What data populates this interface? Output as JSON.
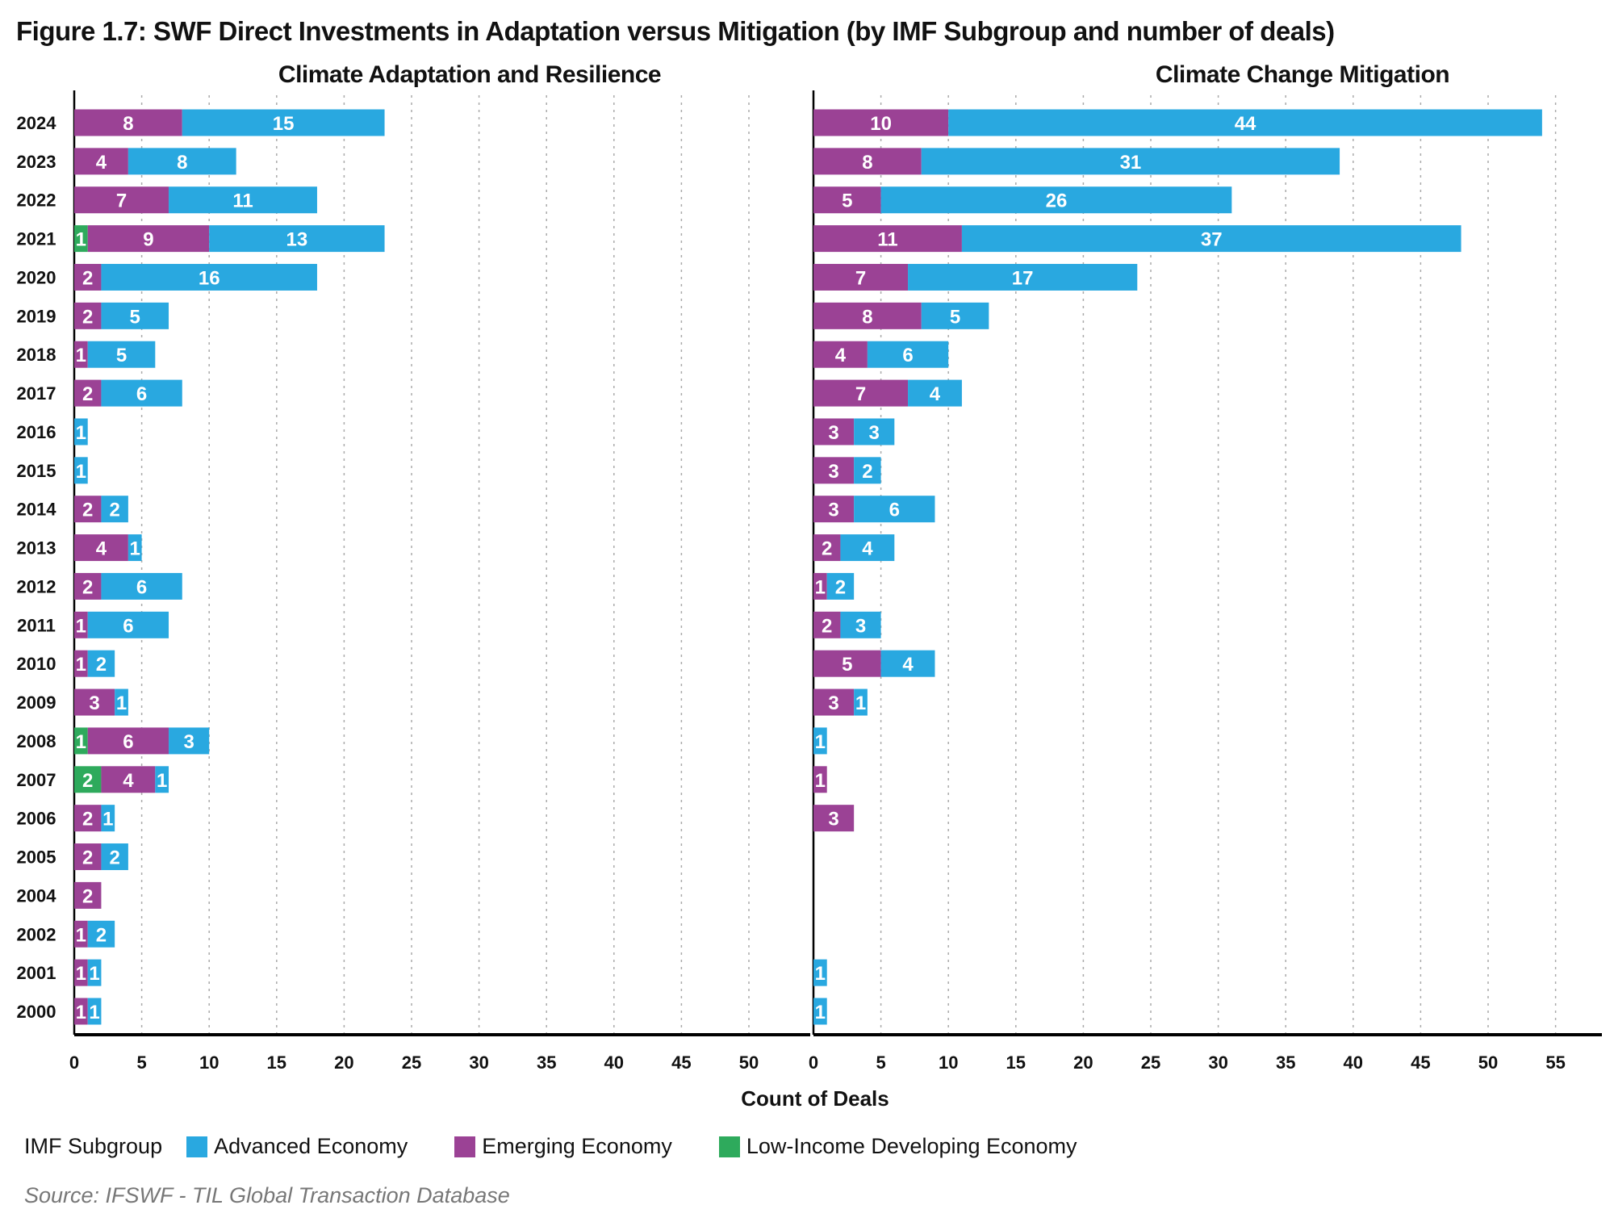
{
  "title": "Figure 1.7: SWF Direct Investments in Adaptation versus Mitigation (by IMF Subgroup and number of deals)",
  "xlabel": "Count of Deals",
  "legend": {
    "title": "IMF Subgroup",
    "items": [
      {
        "name": "Advanced Economy",
        "color": "#29a8e0"
      },
      {
        "name": "Emerging Economy",
        "color": "#9b4295"
      },
      {
        "name": "Low-Income Developing Economy",
        "color": "#2eaa5c"
      }
    ]
  },
  "source": "Source: IFSWF - TIL Global Transaction Database",
  "colors": {
    "advanced": "#29a8e0",
    "emerging": "#9b4295",
    "lowincome": "#2eaa5c"
  },
  "chart_data": [
    {
      "type": "bar",
      "orientation": "horizontal",
      "stacked": true,
      "title": "Climate Adaptation and Resilience",
      "xlabel": "Count of Deals",
      "ylabel": "",
      "xlim": [
        0,
        55
      ],
      "xticks": [
        0,
        5,
        10,
        15,
        20,
        25,
        30,
        35,
        40,
        45,
        50
      ],
      "grid": "vertical-dotted",
      "legend": "bottom-left",
      "categories": [
        "2024",
        "2023",
        "2022",
        "2021",
        "2020",
        "2019",
        "2018",
        "2017",
        "2016",
        "2015",
        "2014",
        "2013",
        "2012",
        "2011",
        "2010",
        "2009",
        "2008",
        "2007",
        "2006",
        "2005",
        "2004",
        "2002",
        "2001",
        "2000"
      ],
      "series": [
        {
          "name": "Low-Income Developing Economy",
          "key": "lowincome",
          "values": [
            0,
            0,
            0,
            1,
            0,
            0,
            0,
            0,
            0,
            0,
            0,
            0,
            0,
            0,
            0,
            0,
            1,
            2,
            0,
            0,
            0,
            0,
            0,
            0
          ]
        },
        {
          "name": "Emerging Economy",
          "key": "emerging",
          "values": [
            8,
            4,
            7,
            9,
            2,
            2,
            1,
            2,
            0,
            0,
            2,
            4,
            2,
            1,
            1,
            3,
            6,
            4,
            2,
            2,
            2,
            1,
            1,
            1
          ]
        },
        {
          "name": "Advanced Economy",
          "key": "advanced",
          "values": [
            15,
            8,
            11,
            13,
            16,
            5,
            5,
            6,
            1,
            1,
            2,
            1,
            6,
            6,
            2,
            1,
            3,
            1,
            1,
            2,
            0,
            2,
            1,
            1
          ]
        }
      ]
    },
    {
      "type": "bar",
      "orientation": "horizontal",
      "stacked": true,
      "title": "Climate Change Mitigation",
      "xlabel": "Count of Deals",
      "ylabel": "",
      "xlim": [
        0,
        58
      ],
      "xticks": [
        0,
        5,
        10,
        15,
        20,
        25,
        30,
        35,
        40,
        45,
        50,
        55
      ],
      "grid": "vertical-dotted",
      "legend": "bottom-left",
      "categories": [
        "2024",
        "2023",
        "2022",
        "2021",
        "2020",
        "2019",
        "2018",
        "2017",
        "2016",
        "2015",
        "2014",
        "2013",
        "2012",
        "2011",
        "2010",
        "2009",
        "2008",
        "2007",
        "2006",
        "2005",
        "2004",
        "2002",
        "2001",
        "2000"
      ],
      "series": [
        {
          "name": "Low-Income Developing Economy",
          "key": "lowincome",
          "values": [
            0,
            0,
            0,
            0,
            0,
            0,
            0,
            0,
            0,
            0,
            0,
            0,
            0,
            0,
            0,
            0,
            0,
            0,
            0,
            0,
            0,
            0,
            0,
            0
          ]
        },
        {
          "name": "Emerging Economy",
          "key": "emerging",
          "values": [
            10,
            8,
            5,
            11,
            7,
            8,
            4,
            7,
            3,
            3,
            3,
            2,
            1,
            2,
            5,
            3,
            0,
            1,
            3,
            0,
            0,
            0,
            0,
            0
          ]
        },
        {
          "name": "Advanced Economy",
          "key": "advanced",
          "values": [
            44,
            31,
            26,
            37,
            17,
            5,
            6,
            4,
            3,
            2,
            6,
            4,
            2,
            3,
            4,
            1,
            1,
            0,
            0,
            0,
            0,
            0,
            1,
            1
          ]
        }
      ]
    }
  ]
}
